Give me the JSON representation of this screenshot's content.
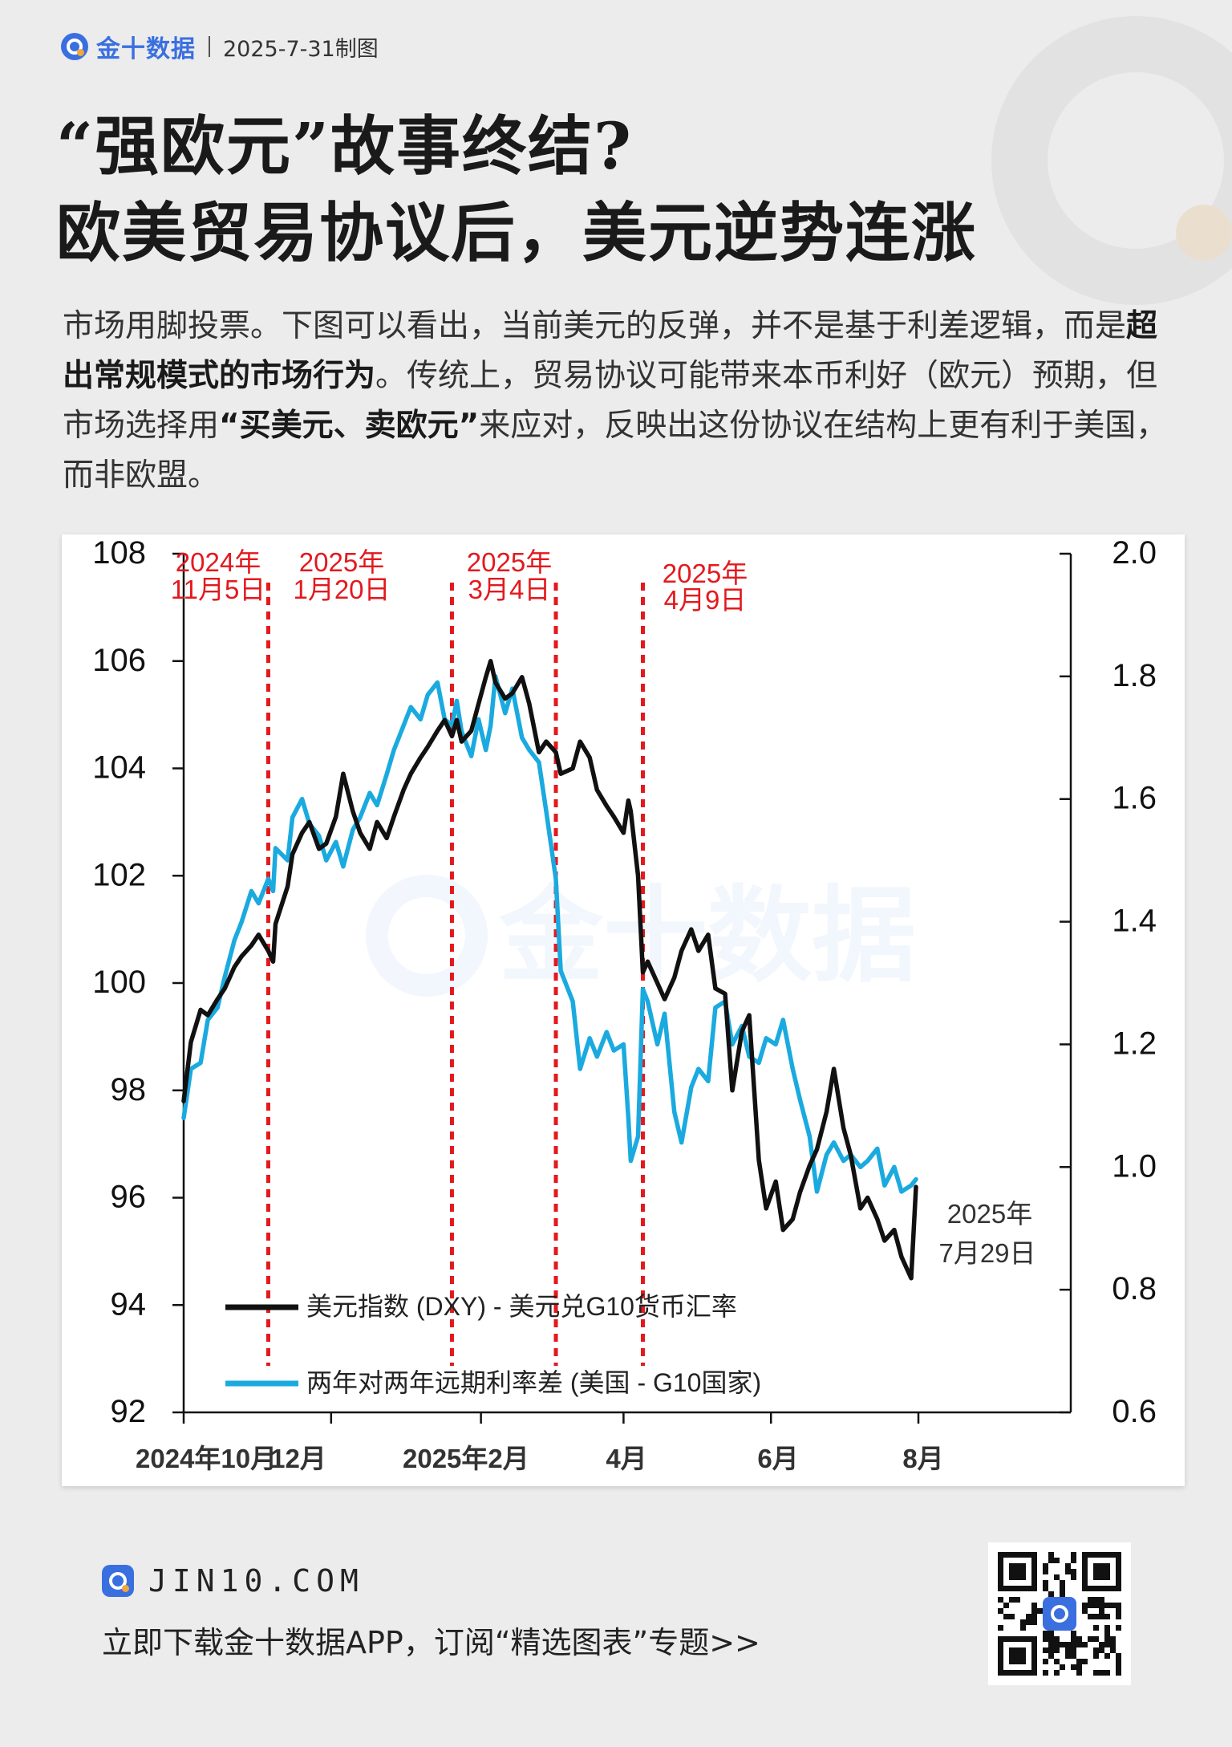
{
  "brand": {
    "name": "金十数据",
    "date": "2025-7-31制图"
  },
  "title": {
    "line1": "“强欧元”故事终结?",
    "line2": "欧美贸易协议后，美元逆势连涨"
  },
  "description": {
    "part1": "市场用脚投票。下图可以看出，当前美元的反弹，并不是基于利差逻辑，而是",
    "bold1": "超出常规模式的市场行为",
    "part2": "。传统上，贸易协议可能带来本币利好（欧元）预期，但市场选择用",
    "bold2": "“买美元、卖欧元”",
    "part3": "来应对，反映出这份协议在结构上更有利于美国，而非欧盟。"
  },
  "chart_data": {
    "type": "line",
    "x_start": "2024-10-01",
    "x_end": "2025-07-31",
    "x_ticks": [
      {
        "date": "2024-10-01",
        "label": "2024年10月"
      },
      {
        "date": "2024-12-01",
        "label": "12月"
      },
      {
        "date": "2025-02-01",
        "label": "2025年2月"
      },
      {
        "date": "2025-04-01",
        "label": "4月"
      },
      {
        "date": "2025-06-01",
        "label": "6月"
      },
      {
        "date": "2025-08-01",
        "label": "8月"
      }
    ],
    "y_left": {
      "min": 92,
      "max": 108,
      "ticks": [
        "108",
        "106",
        "104",
        "102",
        "100",
        "98",
        "96",
        "94",
        "92"
      ]
    },
    "y_right": {
      "min": 0.6,
      "max": 2.0,
      "ticks": [
        "2.0",
        "1.8",
        "1.6",
        "1.4",
        "1.2",
        "1.0",
        "0.8",
        "0.6"
      ]
    },
    "series": [
      {
        "name": "美元指数 (DXY) - 美元兑G10货币汇率",
        "axis": "left",
        "color": "#111111",
        "points": [
          [
            "2024-10-01",
            97.8
          ],
          [
            "2024-10-04",
            98.9
          ],
          [
            "2024-10-08",
            99.5
          ],
          [
            "2024-10-11",
            99.4
          ],
          [
            "2024-10-15",
            99.7
          ],
          [
            "2024-10-18",
            99.9
          ],
          [
            "2024-10-22",
            100.3
          ],
          [
            "2024-10-25",
            100.5
          ],
          [
            "2024-10-29",
            100.7
          ],
          [
            "2024-11-01",
            100.9
          ],
          [
            "2024-11-05",
            100.6
          ],
          [
            "2024-11-07",
            100.4
          ],
          [
            "2024-11-08",
            101.1
          ],
          [
            "2024-11-13",
            101.8
          ],
          [
            "2024-11-15",
            102.4
          ],
          [
            "2024-11-19",
            102.8
          ],
          [
            "2024-11-22",
            103.0
          ],
          [
            "2024-11-26",
            102.5
          ],
          [
            "2024-11-29",
            102.6
          ],
          [
            "2024-12-03",
            103.1
          ],
          [
            "2024-12-06",
            103.9
          ],
          [
            "2024-12-10",
            103.2
          ],
          [
            "2024-12-13",
            102.8
          ],
          [
            "2024-12-17",
            102.5
          ],
          [
            "2024-12-20",
            103.0
          ],
          [
            "2024-12-24",
            102.7
          ],
          [
            "2024-12-27",
            103.1
          ],
          [
            "2024-12-31",
            103.6
          ],
          [
            "2025-01-03",
            103.9
          ],
          [
            "2025-01-07",
            104.2
          ],
          [
            "2025-01-10",
            104.4
          ],
          [
            "2025-01-14",
            104.7
          ],
          [
            "2025-01-17",
            104.9
          ],
          [
            "2025-01-20",
            104.6
          ],
          [
            "2025-01-22",
            104.9
          ],
          [
            "2025-01-24",
            104.5
          ],
          [
            "2025-01-28",
            104.7
          ],
          [
            "2025-01-31",
            105.2
          ],
          [
            "2025-02-03",
            105.7
          ],
          [
            "2025-02-05",
            106.0
          ],
          [
            "2025-02-07",
            105.6
          ],
          [
            "2025-02-11",
            105.3
          ],
          [
            "2025-02-14",
            105.4
          ],
          [
            "2025-02-18",
            105.7
          ],
          [
            "2025-02-21",
            105.2
          ],
          [
            "2025-02-25",
            104.3
          ],
          [
            "2025-02-28",
            104.5
          ],
          [
            "2025-03-04",
            104.3
          ],
          [
            "2025-03-06",
            103.9
          ],
          [
            "2025-03-11",
            104.0
          ],
          [
            "2025-03-14",
            104.5
          ],
          [
            "2025-03-18",
            104.2
          ],
          [
            "2025-03-21",
            103.6
          ],
          [
            "2025-03-25",
            103.3
          ],
          [
            "2025-03-28",
            103.1
          ],
          [
            "2025-04-01",
            102.8
          ],
          [
            "2025-04-03",
            103.4
          ],
          [
            "2025-04-04",
            103.2
          ],
          [
            "2025-04-07",
            102.0
          ],
          [
            "2025-04-09",
            100.2
          ],
          [
            "2025-04-11",
            100.4
          ],
          [
            "2025-04-15",
            100.0
          ],
          [
            "2025-04-18",
            99.7
          ],
          [
            "2025-04-22",
            100.1
          ],
          [
            "2025-04-25",
            100.6
          ],
          [
            "2025-04-29",
            101.0
          ],
          [
            "2025-05-02",
            100.6
          ],
          [
            "2025-05-06",
            100.9
          ],
          [
            "2025-05-09",
            99.9
          ],
          [
            "2025-05-13",
            99.8
          ],
          [
            "2025-05-16",
            98.0
          ],
          [
            "2025-05-20",
            99.1
          ],
          [
            "2025-05-23",
            99.4
          ],
          [
            "2025-05-27",
            96.7
          ],
          [
            "2025-05-30",
            95.8
          ],
          [
            "2025-06-03",
            96.3
          ],
          [
            "2025-06-06",
            95.4
          ],
          [
            "2025-06-10",
            95.6
          ],
          [
            "2025-06-13",
            96.1
          ],
          [
            "2025-06-17",
            96.6
          ],
          [
            "2025-06-20",
            96.9
          ],
          [
            "2025-06-24",
            97.6
          ],
          [
            "2025-06-27",
            98.4
          ],
          [
            "2025-07-01",
            97.3
          ],
          [
            "2025-07-04",
            96.8
          ],
          [
            "2025-07-08",
            95.8
          ],
          [
            "2025-07-11",
            96.0
          ],
          [
            "2025-07-15",
            95.6
          ],
          [
            "2025-07-18",
            95.2
          ],
          [
            "2025-07-22",
            95.4
          ],
          [
            "2025-07-25",
            94.9
          ],
          [
            "2025-07-29",
            94.5
          ],
          [
            "2025-07-31",
            96.2
          ]
        ]
      },
      {
        "name": "两年对两年远期利率差 (美国 - G10国家)",
        "axis": "right",
        "color": "#1aaadf",
        "points": [
          [
            "2024-10-01",
            1.08
          ],
          [
            "2024-10-04",
            1.16
          ],
          [
            "2024-10-08",
            1.17
          ],
          [
            "2024-10-11",
            1.24
          ],
          [
            "2024-10-15",
            1.26
          ],
          [
            "2024-10-18",
            1.31
          ],
          [
            "2024-10-22",
            1.37
          ],
          [
            "2024-10-25",
            1.4
          ],
          [
            "2024-10-29",
            1.45
          ],
          [
            "2024-11-01",
            1.43
          ],
          [
            "2024-11-05",
            1.47
          ],
          [
            "2024-11-07",
            1.45
          ],
          [
            "2024-11-08",
            1.52
          ],
          [
            "2024-11-13",
            1.5
          ],
          [
            "2024-11-15",
            1.57
          ],
          [
            "2024-11-19",
            1.6
          ],
          [
            "2024-11-22",
            1.56
          ],
          [
            "2024-11-26",
            1.54
          ],
          [
            "2024-11-29",
            1.5
          ],
          [
            "2024-12-03",
            1.53
          ],
          [
            "2024-12-06",
            1.49
          ],
          [
            "2024-12-10",
            1.55
          ],
          [
            "2024-12-13",
            1.57
          ],
          [
            "2024-12-17",
            1.61
          ],
          [
            "2024-12-20",
            1.59
          ],
          [
            "2024-12-24",
            1.64
          ],
          [
            "2024-12-27",
            1.68
          ],
          [
            "2024-12-31",
            1.72
          ],
          [
            "2025-01-03",
            1.75
          ],
          [
            "2025-01-07",
            1.73
          ],
          [
            "2025-01-10",
            1.77
          ],
          [
            "2025-01-14",
            1.79
          ],
          [
            "2025-01-17",
            1.73
          ],
          [
            "2025-01-20",
            1.72
          ],
          [
            "2025-01-22",
            1.76
          ],
          [
            "2025-01-24",
            1.71
          ],
          [
            "2025-01-28",
            1.67
          ],
          [
            "2025-01-31",
            1.73
          ],
          [
            "2025-02-03",
            1.68
          ],
          [
            "2025-02-05",
            1.72
          ],
          [
            "2025-02-07",
            1.8
          ],
          [
            "2025-02-11",
            1.74
          ],
          [
            "2025-02-14",
            1.78
          ],
          [
            "2025-02-18",
            1.7
          ],
          [
            "2025-02-21",
            1.68
          ],
          [
            "2025-02-25",
            1.66
          ],
          [
            "2025-02-28",
            1.58
          ],
          [
            "2025-03-04",
            1.47
          ],
          [
            "2025-03-06",
            1.32
          ],
          [
            "2025-03-11",
            1.27
          ],
          [
            "2025-03-14",
            1.16
          ],
          [
            "2025-03-18",
            1.21
          ],
          [
            "2025-03-21",
            1.18
          ],
          [
            "2025-03-25",
            1.22
          ],
          [
            "2025-03-28",
            1.19
          ],
          [
            "2025-04-01",
            1.2
          ],
          [
            "2025-04-03",
            1.08
          ],
          [
            "2025-04-04",
            1.01
          ],
          [
            "2025-04-07",
            1.05
          ],
          [
            "2025-04-09",
            1.29
          ],
          [
            "2025-04-11",
            1.27
          ],
          [
            "2025-04-15",
            1.2
          ],
          [
            "2025-04-18",
            1.25
          ],
          [
            "2025-04-22",
            1.09
          ],
          [
            "2025-04-25",
            1.04
          ],
          [
            "2025-04-29",
            1.13
          ],
          [
            "2025-05-02",
            1.16
          ],
          [
            "2025-05-06",
            1.14
          ],
          [
            "2025-05-09",
            1.26
          ],
          [
            "2025-05-13",
            1.27
          ],
          [
            "2025-05-16",
            1.2
          ],
          [
            "2025-05-20",
            1.23
          ],
          [
            "2025-05-23",
            1.18
          ],
          [
            "2025-05-27",
            1.17
          ],
          [
            "2025-05-30",
            1.21
          ],
          [
            "2025-06-03",
            1.2
          ],
          [
            "2025-06-06",
            1.24
          ],
          [
            "2025-06-10",
            1.16
          ],
          [
            "2025-06-13",
            1.11
          ],
          [
            "2025-06-17",
            1.05
          ],
          [
            "2025-06-20",
            0.96
          ],
          [
            "2025-06-24",
            1.02
          ],
          [
            "2025-06-27",
            1.04
          ],
          [
            "2025-07-01",
            1.01
          ],
          [
            "2025-07-04",
            1.02
          ],
          [
            "2025-07-08",
            1.0
          ],
          [
            "2025-07-11",
            1.01
          ],
          [
            "2025-07-15",
            1.03
          ],
          [
            "2025-07-18",
            0.97
          ],
          [
            "2025-07-22",
            1.0
          ],
          [
            "2025-07-25",
            0.96
          ],
          [
            "2025-07-29",
            0.97
          ],
          [
            "2025-07-31",
            0.98
          ]
        ]
      }
    ],
    "events": [
      {
        "date": "2024-11-05",
        "label_year": "2024年",
        "label_day": "11月5日"
      },
      {
        "date": "2025-01-20",
        "label_year": "2025年",
        "label_day": "1月20日"
      },
      {
        "date": "2025-03-04",
        "label_year": "2025年",
        "label_day": "3月4日"
      },
      {
        "date": "2025-04-09",
        "label_year": "2025年",
        "label_day": "4月9日"
      }
    ],
    "end_annotation": {
      "year": "2025年",
      "day": "7月29日"
    },
    "legend_position": "bottom-left",
    "grid": false
  },
  "footer": {
    "site": "JIN10.COM",
    "cta": "立即下载金十数据APP，订阅“精选图表”专题>>"
  }
}
